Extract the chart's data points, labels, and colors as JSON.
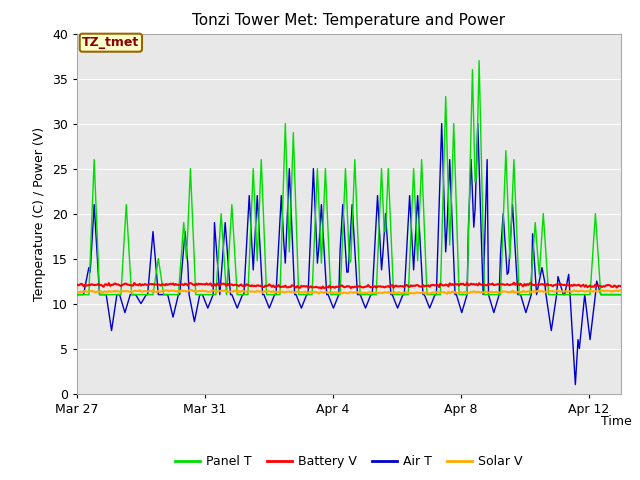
{
  "title": "Tonzi Tower Met: Temperature and Power",
  "xlabel": "Time",
  "ylabel": "Temperature (C) / Power (V)",
  "ylim": [
    0,
    40
  ],
  "yticks": [
    0,
    5,
    10,
    15,
    20,
    25,
    30,
    35,
    40
  ],
  "plot_bg_color": "#e8e8e8",
  "annotation_text": "TZ_tmet",
  "annotation_bg": "#ffffcc",
  "annotation_border": "#996600",
  "annotation_text_color": "#880000",
  "x_tick_labels": [
    "Mar 27",
    "Mar 31",
    "Apr 4",
    "Apr 8",
    "Apr 12"
  ],
  "x_tick_positions": [
    0,
    4,
    8,
    12,
    16
  ],
  "panel_color": "#00dd00",
  "battery_color": "#ff0000",
  "air_color": "#0000cc",
  "solar_color": "#ffaa00",
  "n_days": 17,
  "n_per_day": 24
}
